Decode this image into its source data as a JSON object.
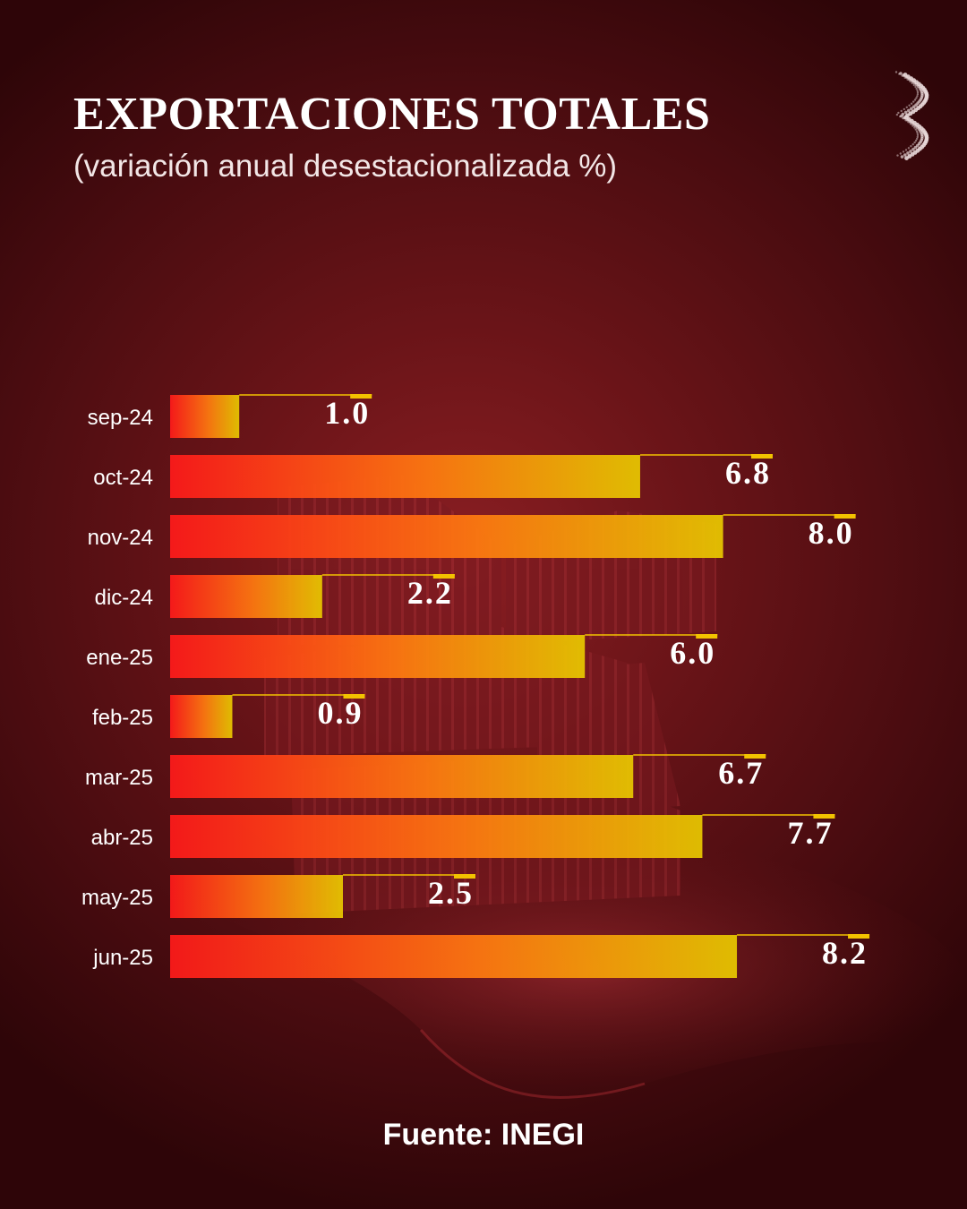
{
  "title": "EXPORTACIONES TOTALES",
  "subtitle": "(variación anual desestacionalizada %)",
  "source": "Fuente: INEGI",
  "logo": {
    "icon": "dotted-s-logo-icon"
  },
  "colors": {
    "bar_start": "#ff1a1a",
    "bar_mid": "#ff7a10",
    "bar_end": "#e8c800",
    "accent_line": "#f2c200",
    "label_text": "#ffffff"
  },
  "chart_data": {
    "type": "bar",
    "orientation": "horizontal",
    "title": "EXPORTACIONES TOTALES",
    "subtitle": "(variación anual desestacionalizada %)",
    "categories": [
      "sep-24",
      "oct-24",
      "nov-24",
      "dic-24",
      "ene-25",
      "feb-25",
      "mar-25",
      "abr-25",
      "may-25",
      "jun-25"
    ],
    "values": [
      1.0,
      6.8,
      8.0,
      2.2,
      6.0,
      0.9,
      6.7,
      7.7,
      2.5,
      8.2
    ],
    "value_labels": [
      "1.0",
      "6.8",
      "8.0",
      "2.2",
      "6.0",
      "0.9",
      "6.7",
      "7.7",
      "2.5",
      "8.2"
    ],
    "xlim": [
      0,
      10
    ],
    "grid": false,
    "legend": "none"
  }
}
